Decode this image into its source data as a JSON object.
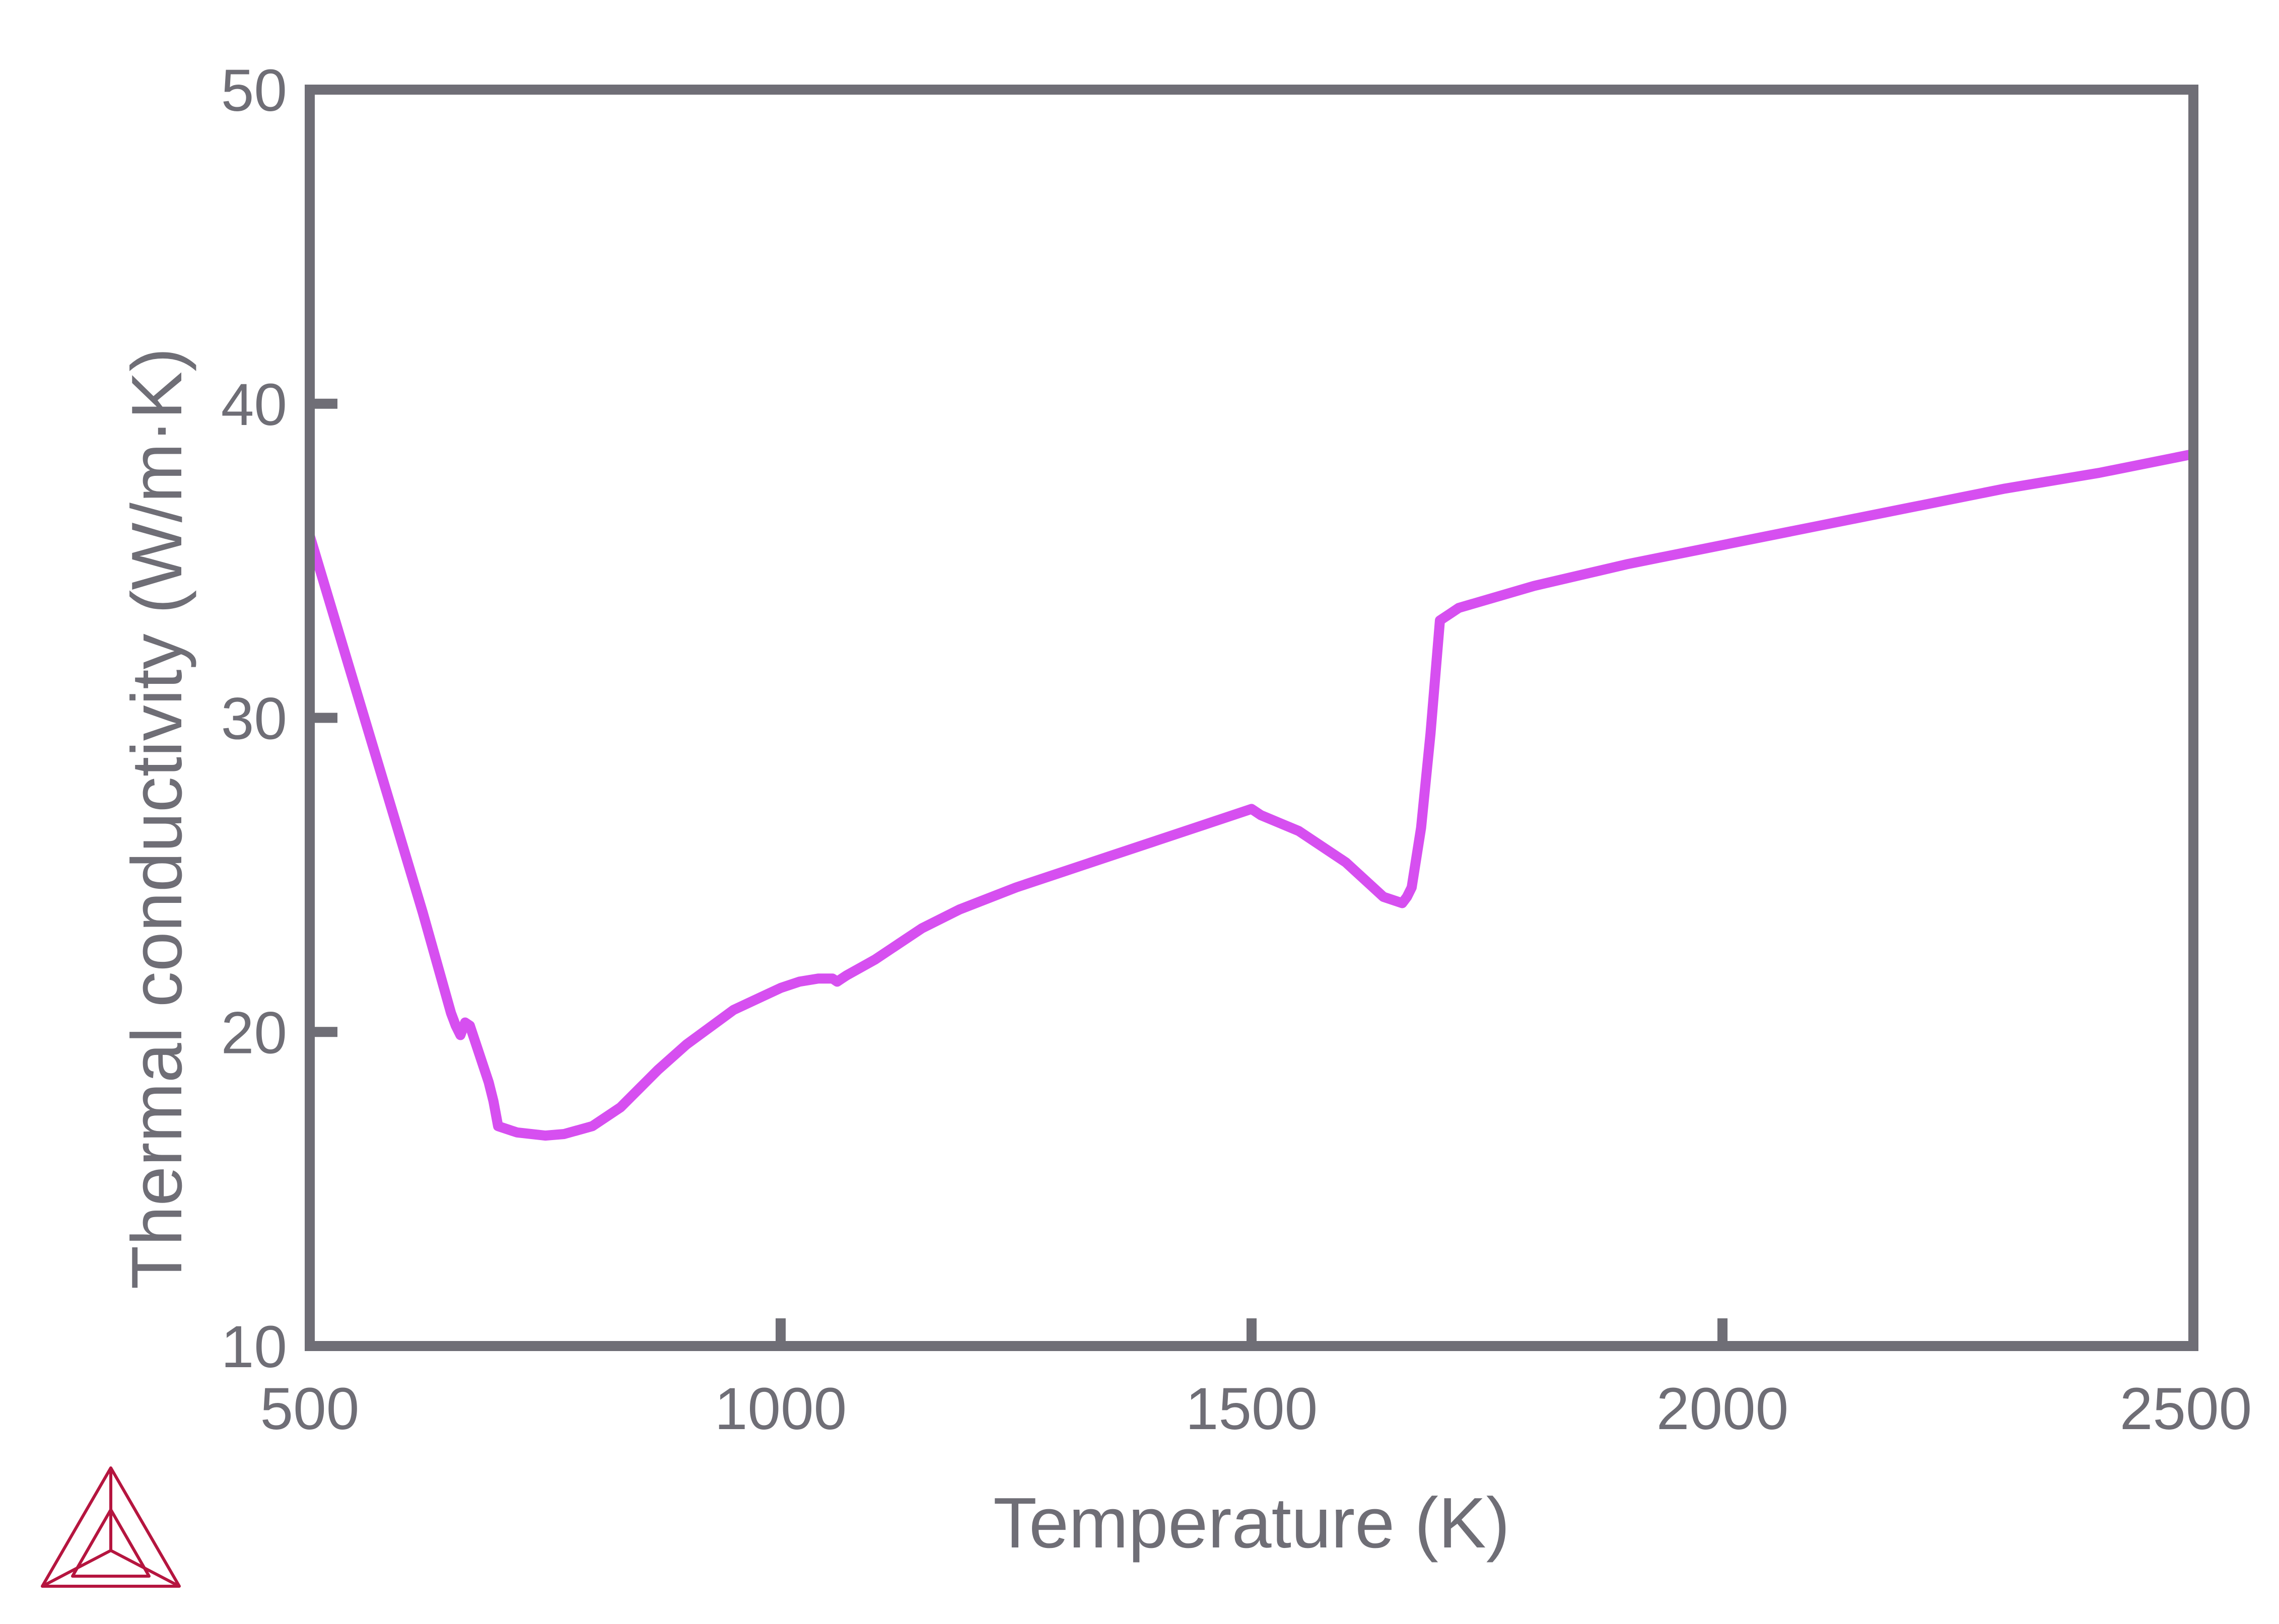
{
  "colors": {
    "axis": "#6f6e76",
    "series": "#d64ff0",
    "logo": "#b5153f",
    "background": "#ffffff"
  },
  "logo": {
    "icon": "triangle-logo-icon"
  },
  "chart_data": {
    "type": "line",
    "title": "",
    "xlabel": "Temperature (K)",
    "ylabel": "Thermal conductivity (W/m·K)",
    "xlim": [
      500,
      2500
    ],
    "ylim": [
      10,
      50
    ],
    "xticks": [
      500,
      1000,
      1500,
      2000,
      2500
    ],
    "yticks": [
      10,
      20,
      30,
      40,
      50
    ],
    "grid": false,
    "legend": "none",
    "series": [
      {
        "color": "#d64ff0",
        "x": [
          500,
          540,
          580,
          620,
          650,
          655,
          660,
          665,
          670,
          680,
          690,
          695,
          700,
          720,
          750,
          770,
          800,
          830,
          850,
          870,
          900,
          950,
          1000,
          1020,
          1040,
          1055,
          1060,
          1065,
          1070,
          1100,
          1150,
          1190,
          1250,
          1300,
          1350,
          1400,
          1450,
          1500,
          1510,
          1550,
          1600,
          1640,
          1660,
          1665,
          1670,
          1680,
          1690,
          1700,
          1710,
          1720,
          1800,
          1900,
          2000,
          2100,
          2200,
          2300,
          2400,
          2500
        ],
        "y": [
          35.8,
          31.8,
          27.8,
          23.8,
          20.6,
          20.2,
          19.9,
          20.3,
          20.2,
          19.3,
          18.4,
          17.8,
          17.0,
          16.8,
          16.7,
          16.75,
          17.0,
          17.6,
          18.2,
          18.8,
          19.6,
          20.7,
          21.4,
          21.6,
          21.7,
          21.7,
          21.6,
          21.7,
          21.8,
          22.3,
          23.3,
          23.9,
          24.6,
          25.1,
          25.6,
          26.1,
          26.6,
          27.1,
          26.9,
          26.4,
          25.4,
          24.3,
          24.1,
          24.3,
          24.6,
          26.5,
          29.5,
          33.1,
          33.3,
          33.5,
          34.2,
          34.9,
          35.5,
          36.1,
          36.7,
          37.3,
          37.8,
          38.4
        ]
      }
    ]
  }
}
